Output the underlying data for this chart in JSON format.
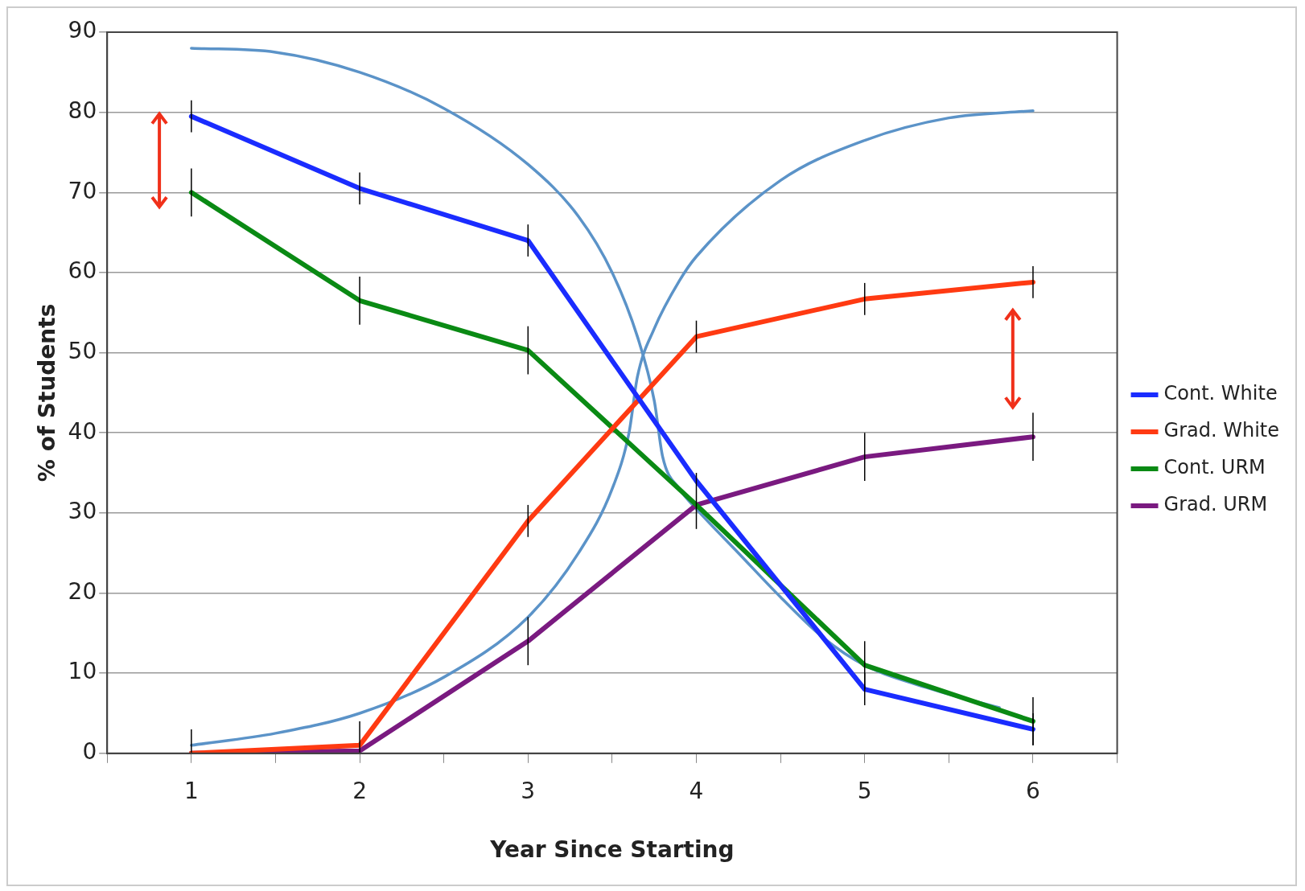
{
  "chart_data": {
    "type": "line",
    "xlabel": "Year Since Starting",
    "ylabel": "% of Students",
    "x": [
      1,
      2,
      3,
      4,
      5,
      6
    ],
    "series": [
      {
        "name": "Cont. White",
        "color": "#1a2cff",
        "values": [
          79.5,
          70.5,
          64,
          34,
          8,
          3
        ],
        "errors": [
          2,
          2,
          2,
          null,
          2,
          2
        ]
      },
      {
        "name": "Grad. White",
        "color": "#ff3a12",
        "values": [
          0,
          1,
          29,
          52,
          56.7,
          58.8
        ],
        "errors": [
          [
            0,
            3
          ],
          [
            0,
            4
          ],
          2,
          2,
          2,
          2
        ]
      },
      {
        "name": "Cont. URM",
        "color": "#0a8a14",
        "values": [
          70,
          56.5,
          50.3,
          31,
          11,
          4
        ],
        "errors": [
          3,
          3,
          3,
          null,
          3,
          3
        ]
      },
      {
        "name": "Grad. URM",
        "color": "#7a1a80",
        "values": [
          0,
          0.3,
          14,
          31,
          37,
          39.5
        ],
        "errors": [
          null,
          null,
          3,
          [
            28,
            35
          ],
          3,
          3
        ]
      },
      {
        "type": "line",
        "color": "#5b93c8",
        "x": [
          1,
          1.5,
          2,
          2.5,
          3,
          3.3,
          3.5,
          3.65,
          3.75,
          3.8,
          3.9,
          4,
          4.25,
          4.5,
          4.75,
          5,
          5.4,
          5.8
        ],
        "values": [
          88,
          87.5,
          85,
          80.5,
          73.5,
          67,
          60,
          52,
          44,
          37,
          33,
          30.5,
          25,
          19.5,
          14.5,
          11,
          8,
          5.7
        ]
      },
      {
        "type": "line",
        "color": "#5b93c8",
        "x": [
          1,
          1.5,
          2,
          2.5,
          3,
          3.3,
          3.5,
          3.6,
          3.65,
          3.75,
          3.9,
          4,
          4.5,
          5,
          5.5,
          6
        ],
        "values": [
          1,
          2.5,
          5,
          9.5,
          17,
          25,
          33,
          40,
          47,
          53,
          59,
          62,
          71.5,
          76.5,
          79.3,
          80.2
        ]
      }
    ],
    "xlim": [
      0.5,
      6.5
    ],
    "xticks": [
      {
        "value": 0.5,
        "label": null
      },
      1,
      {
        "value": 1.5,
        "label": null
      },
      2,
      {
        "value": 2.5,
        "label": null
      },
      3,
      {
        "value": 3.5,
        "label": null
      },
      4,
      {
        "value": 4.5,
        "label": null
      },
      5,
      {
        "value": 5.5,
        "label": null
      },
      6,
      {
        "value": 6.5,
        "label": null
      }
    ],
    "ylim": [
      0,
      90
    ],
    "yticks": [
      0,
      10,
      20,
      30,
      40,
      50,
      60,
      70,
      80,
      90
    ],
    "grid": "y",
    "legend": "right",
    "marker": "none",
    "line_style": "solid"
  }
}
